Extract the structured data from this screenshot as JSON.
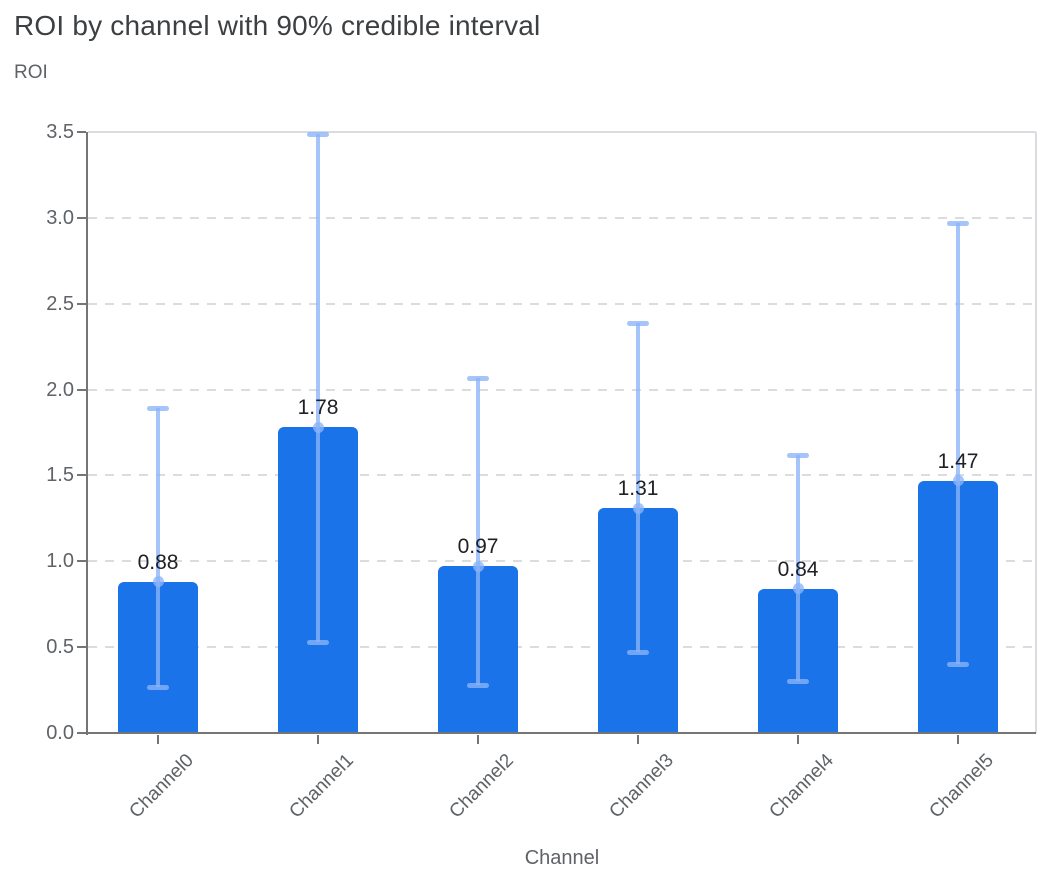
{
  "chart_data": {
    "type": "bar",
    "title": "ROI by channel with 90% credible interval",
    "xlabel": "Channel",
    "ylabel": "ROI",
    "categories": [
      "Channel0",
      "Channel1",
      "Channel2",
      "Channel3",
      "Channel4",
      "Channel5"
    ],
    "values": [
      0.88,
      1.78,
      0.97,
      1.31,
      0.84,
      1.47
    ],
    "value_labels": [
      "0.88",
      "1.78",
      "0.97",
      "1.31",
      "0.84",
      "1.47"
    ],
    "error_low": [
      0.27,
      0.53,
      0.28,
      0.47,
      0.3,
      0.4
    ],
    "error_high": [
      1.89,
      3.49,
      2.07,
      2.39,
      1.62,
      2.97
    ],
    "interval_label": "90% credible interval",
    "ylim": [
      0,
      3.5
    ],
    "ytick_step": 0.5,
    "ytick_labels": [
      "0.0",
      "0.5",
      "1.0",
      "1.5",
      "2.0",
      "2.5",
      "3.0",
      "3.5"
    ],
    "grid": "horizontal-dashed",
    "legend": "none"
  },
  "colors": {
    "bar": "#1a73e8",
    "error_bar": "#8ab4f8",
    "gridline": "#dadce0",
    "plot_border": "#dadce0",
    "axis_line": "#757575",
    "title_text": "#3c4043",
    "axis_text": "#5f6368",
    "value_label_text": "#202124",
    "background": "#ffffff"
  }
}
